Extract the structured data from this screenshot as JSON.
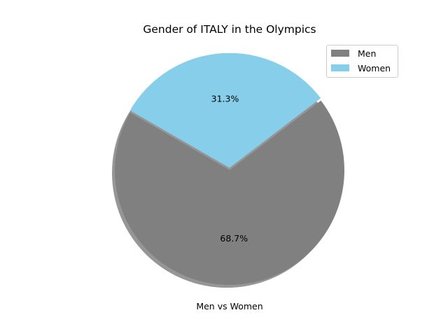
{
  "chart_data": {
    "type": "pie",
    "title": "Gender of ITALY in the Olympics",
    "xlabel": "Men vs Women",
    "ylabel": "",
    "labels": [
      "Men",
      "Women"
    ],
    "values": [
      68.7,
      31.3
    ],
    "value_labels": [
      "68.7%",
      "31.3%"
    ],
    "colors": [
      "#808080",
      "#87ceeb"
    ],
    "start_angle_degrees": 150,
    "explode": [
      0,
      0.02
    ],
    "shadow": true,
    "legend": {
      "position": "upper-right",
      "entries": [
        "Men",
        "Women"
      ]
    }
  }
}
